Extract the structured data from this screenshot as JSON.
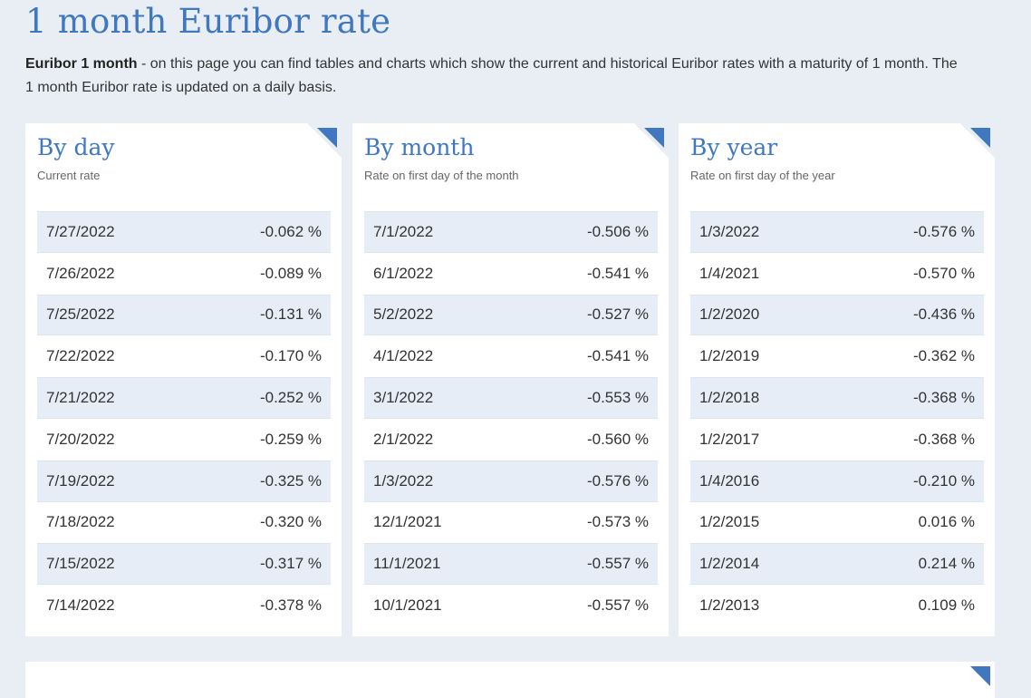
{
  "page": {
    "title": "1 month Euribor rate",
    "intro_bold": "Euribor 1 month",
    "intro_rest": " - on this page you can find tables and charts which show the current and historical Euribor rates with a maturity of 1 month. The 1 month Euribor rate is updated on a daily basis."
  },
  "cards": [
    {
      "title": "By day",
      "subtitle": "Current rate",
      "rows": [
        {
          "date": "7/27/2022",
          "rate": "-0.062 %"
        },
        {
          "date": "7/26/2022",
          "rate": "-0.089 %"
        },
        {
          "date": "7/25/2022",
          "rate": "-0.131 %"
        },
        {
          "date": "7/22/2022",
          "rate": "-0.170 %"
        },
        {
          "date": "7/21/2022",
          "rate": "-0.252 %"
        },
        {
          "date": "7/20/2022",
          "rate": "-0.259 %"
        },
        {
          "date": "7/19/2022",
          "rate": "-0.325 %"
        },
        {
          "date": "7/18/2022",
          "rate": "-0.320 %"
        },
        {
          "date": "7/15/2022",
          "rate": "-0.317 %"
        },
        {
          "date": "7/14/2022",
          "rate": "-0.378 %"
        }
      ]
    },
    {
      "title": "By month",
      "subtitle": "Rate on first day of the month",
      "rows": [
        {
          "date": "7/1/2022",
          "rate": "-0.506 %"
        },
        {
          "date": "6/1/2022",
          "rate": "-0.541 %"
        },
        {
          "date": "5/2/2022",
          "rate": "-0.527 %"
        },
        {
          "date": "4/1/2022",
          "rate": "-0.541 %"
        },
        {
          "date": "3/1/2022",
          "rate": "-0.553 %"
        },
        {
          "date": "2/1/2022",
          "rate": "-0.560 %"
        },
        {
          "date": "1/3/2022",
          "rate": "-0.576 %"
        },
        {
          "date": "12/1/2021",
          "rate": "-0.573 %"
        },
        {
          "date": "11/1/2021",
          "rate": "-0.557 %"
        },
        {
          "date": "10/1/2021",
          "rate": "-0.557 %"
        }
      ]
    },
    {
      "title": "By year",
      "subtitle": "Rate on first day of the year",
      "rows": [
        {
          "date": "1/3/2022",
          "rate": "-0.576 %"
        },
        {
          "date": "1/4/2021",
          "rate": "-0.570 %"
        },
        {
          "date": "1/2/2020",
          "rate": "-0.436 %"
        },
        {
          "date": "1/2/2019",
          "rate": "-0.362 %"
        },
        {
          "date": "1/2/2018",
          "rate": "-0.368 %"
        },
        {
          "date": "1/2/2017",
          "rate": "-0.368 %"
        },
        {
          "date": "1/4/2016",
          "rate": "-0.210 %"
        },
        {
          "date": "1/2/2015",
          "rate": "0.016 %"
        },
        {
          "date": "1/2/2014",
          "rate": "0.214 %"
        },
        {
          "date": "1/2/2013",
          "rate": "0.109 %"
        }
      ]
    }
  ],
  "colors": {
    "accent": "#3f78c0",
    "background": "#e9eef4",
    "row_stripe": "#e6edf7"
  },
  "icons": {
    "corner": "corner-triangle-icon"
  }
}
